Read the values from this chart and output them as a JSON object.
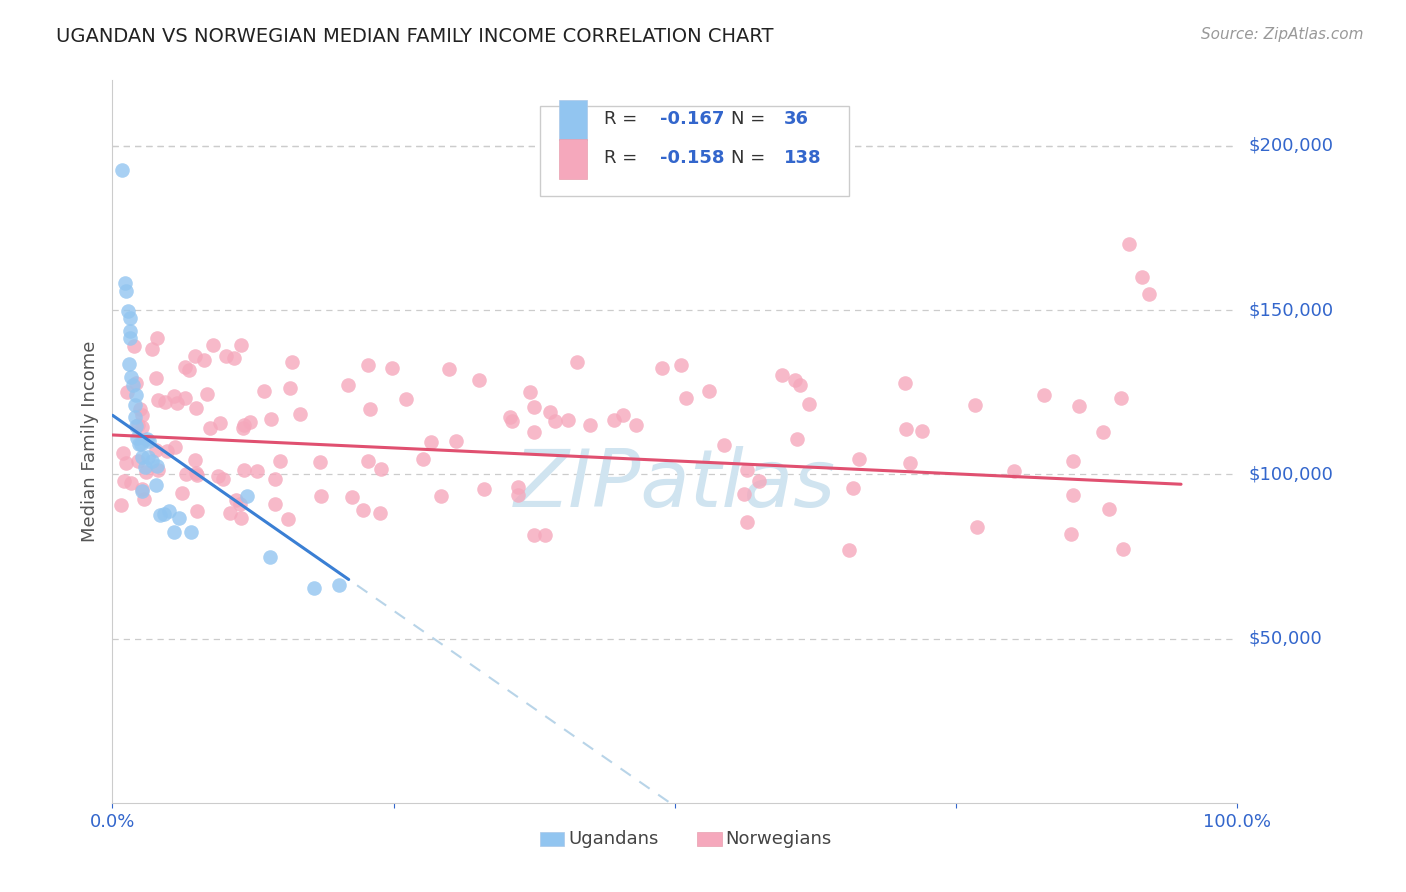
{
  "title": "UGANDAN VS NORWEGIAN MEDIAN FAMILY INCOME CORRELATION CHART",
  "source": "Source: ZipAtlas.com",
  "ylabel": "Median Family Income",
  "ytick_labels": [
    "$50,000",
    "$100,000",
    "$150,000",
    "$200,000"
  ],
  "ytick_values": [
    50000,
    100000,
    150000,
    200000
  ],
  "ylim": [
    0,
    220000
  ],
  "xlim": [
    0.0,
    1.0
  ],
  "ugandan_color": "#92c5f0",
  "norwegian_color": "#f5a8bc",
  "trend_ugandan_color": "#3a7fd4",
  "trend_norwegian_color": "#e05070",
  "trend_dashed_color": "#b8d4e8",
  "watermark": "ZIPatlas",
  "watermark_color": "#d0e4f0",
  "title_color": "#222222",
  "source_color": "#999999",
  "axis_label_color": "#555555",
  "tick_color": "#3366cc",
  "grid_color": "#cccccc",
  "legend_text_color": "#333333",
  "legend_value_color": "#3366cc"
}
